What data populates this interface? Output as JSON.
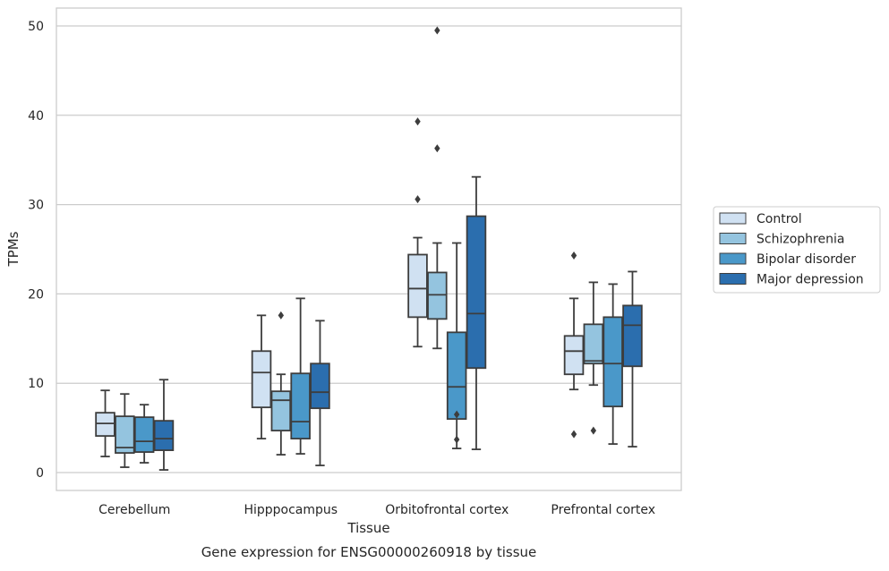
{
  "chart_data": {
    "type": "box",
    "title": "Gene expression for ENSG00000260918 by tissue",
    "xlabel": "Tissue",
    "ylabel": "TPMs",
    "categories": [
      "Cerebellum",
      "Hipppocampus",
      "Orbitofrontal cortex",
      "Prefrontal cortex"
    ],
    "ylim": [
      -2,
      52
    ],
    "yticks": [
      0,
      10,
      20,
      30,
      40,
      50
    ],
    "grid": true,
    "legend_position": "right",
    "series": [
      {
        "name": "Control",
        "color": "#d0e1f2",
        "boxes": [
          {
            "whislo": 1.8,
            "q1": 4.1,
            "med": 5.5,
            "q3": 6.7,
            "whishi": 9.2,
            "fliers": []
          },
          {
            "whislo": 3.8,
            "q1": 7.3,
            "med": 11.2,
            "q3": 13.6,
            "whishi": 17.6,
            "fliers": []
          },
          {
            "whislo": 14.1,
            "q1": 17.4,
            "med": 20.6,
            "q3": 24.4,
            "whishi": 26.3,
            "fliers": [
              30.6,
              39.3
            ]
          },
          {
            "whislo": 9.3,
            "q1": 11.0,
            "med": 13.6,
            "q3": 15.3,
            "whishi": 19.5,
            "fliers": [
              4.3,
              24.3
            ]
          }
        ]
      },
      {
        "name": "Schizophrenia",
        "color": "#94c4df",
        "boxes": [
          {
            "whislo": 0.6,
            "q1": 2.2,
            "med": 2.8,
            "q3": 6.3,
            "whishi": 8.8,
            "fliers": []
          },
          {
            "whislo": 2.0,
            "q1": 4.7,
            "med": 8.1,
            "q3": 9.1,
            "whishi": 11.0,
            "fliers": [
              17.6
            ]
          },
          {
            "whislo": 13.9,
            "q1": 17.2,
            "med": 19.9,
            "q3": 22.4,
            "whishi": 25.7,
            "fliers": [
              36.3,
              49.5
            ]
          },
          {
            "whislo": 9.8,
            "q1": 12.2,
            "med": 12.5,
            "q3": 16.6,
            "whishi": 21.3,
            "fliers": [
              4.7
            ]
          }
        ]
      },
      {
        "name": "Bipolar disorder",
        "color": "#4a98c9",
        "boxes": [
          {
            "whislo": 1.1,
            "q1": 2.3,
            "med": 3.5,
            "q3": 6.2,
            "whishi": 7.6,
            "fliers": []
          },
          {
            "whislo": 2.1,
            "q1": 3.8,
            "med": 5.7,
            "q3": 11.1,
            "whishi": 19.5,
            "fliers": []
          },
          {
            "whislo": 2.7,
            "q1": 6.0,
            "med": 9.6,
            "q3": 15.7,
            "whishi": 25.7,
            "fliers": [
              3.7,
              6.5
            ]
          },
          {
            "whislo": 3.2,
            "q1": 7.4,
            "med": 12.2,
            "q3": 17.4,
            "whishi": 21.1,
            "fliers": []
          }
        ]
      },
      {
        "name": "Major depression",
        "color": "#2b6eae",
        "boxes": [
          {
            "whislo": 0.3,
            "q1": 2.5,
            "med": 3.8,
            "q3": 5.8,
            "whishi": 10.4,
            "fliers": []
          },
          {
            "whislo": 0.8,
            "q1": 7.2,
            "med": 9.0,
            "q3": 12.2,
            "whishi": 17.0,
            "fliers": []
          },
          {
            "whislo": 2.6,
            "q1": 11.7,
            "med": 17.8,
            "q3": 28.7,
            "whishi": 33.1,
            "fliers": []
          },
          {
            "whislo": 2.9,
            "q1": 11.9,
            "med": 16.5,
            "q3": 18.7,
            "whishi": 22.5,
            "fliers": []
          }
        ]
      }
    ]
  }
}
